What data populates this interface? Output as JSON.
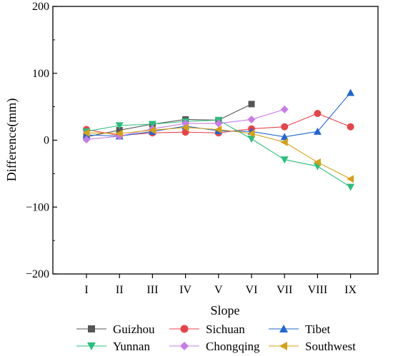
{
  "chart_data": {
    "type": "line",
    "xlabel": "Slope",
    "ylabel": "Difference(mm)",
    "categories": [
      "I",
      "II",
      "III",
      "IV",
      "V",
      "VI",
      "VII",
      "VIII",
      "IX"
    ],
    "ylim": [
      -200,
      200
    ],
    "yticks": [
      -200,
      -100,
      0,
      100,
      200
    ],
    "ytick_labels": [
      "−200",
      "−100",
      "0",
      "100",
      "200"
    ],
    "grid": false,
    "legend_position": "bottom",
    "series": [
      {
        "name": "Guizhou",
        "color": "#555555",
        "marker": "square",
        "values": [
          5,
          15,
          24,
          31,
          30,
          54,
          null,
          null,
          null
        ]
      },
      {
        "name": "Sichuan",
        "color": "#e8434a",
        "marker": "circle",
        "values": [
          16,
          7,
          11,
          12,
          11,
          17,
          20,
          40,
          20
        ]
      },
      {
        "name": "Tibet",
        "color": "#2166d0",
        "marker": "triangle-up",
        "values": [
          8,
          6,
          13,
          21,
          14,
          13,
          5,
          13,
          71
        ]
      },
      {
        "name": "Yunnan",
        "color": "#2bbf7d",
        "marker": "triangle-down",
        "values": [
          13,
          22,
          24,
          28,
          30,
          2,
          -29,
          -39,
          -70
        ]
      },
      {
        "name": "Chongqing",
        "color": "#c77ce8",
        "marker": "diamond",
        "values": [
          1,
          6,
          17,
          25,
          25,
          31,
          46,
          null,
          null
        ]
      },
      {
        "name": "Southwest",
        "color": "#d4a015",
        "marker": "triangle-left",
        "values": [
          11,
          10,
          15,
          19,
          16,
          10,
          -3,
          -33,
          -58
        ]
      }
    ]
  }
}
